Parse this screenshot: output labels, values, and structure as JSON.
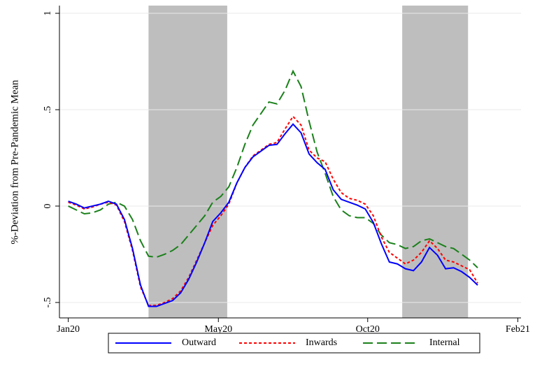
{
  "chart_data": {
    "type": "line",
    "ylabel": "%-Deviation from Pre-Pandemic Mean",
    "x": [
      0,
      1,
      2,
      3,
      4,
      5,
      6,
      7,
      8,
      9,
      10,
      11,
      12,
      13,
      14,
      15,
      16,
      17,
      18,
      19,
      20,
      21,
      22,
      23,
      24,
      25,
      26,
      27,
      28,
      29,
      30,
      31,
      32,
      33,
      34,
      35,
      36,
      37,
      38,
      39,
      40,
      41,
      42,
      43,
      44,
      45,
      46,
      47,
      48,
      49,
      50,
      51
    ],
    "series": [
      {
        "name": "Outward",
        "color": "#0000ff",
        "dash": "solid",
        "values": [
          0.025,
          0.01,
          -0.01,
          0,
          0.01,
          0.025,
          0.01,
          -0.07,
          -0.22,
          -0.41,
          -0.52,
          -0.52,
          -0.505,
          -0.49,
          -0.45,
          -0.38,
          -0.29,
          -0.19,
          -0.08,
          -0.035,
          0.02,
          0.12,
          0.2,
          0.255,
          0.285,
          0.315,
          0.32,
          0.375,
          0.425,
          0.38,
          0.27,
          0.225,
          0.19,
          0.085,
          0.035,
          0.02,
          0.005,
          -0.015,
          -0.085,
          -0.195,
          -0.29,
          -0.3,
          -0.325,
          -0.335,
          -0.29,
          -0.215,
          -0.255,
          -0.325,
          -0.32,
          -0.34,
          -0.37,
          -0.41
        ]
      },
      {
        "name": "Inwards",
        "color": "#ff0000",
        "dash": "dotted",
        "values": [
          0.02,
          0.005,
          -0.015,
          -0.005,
          0.01,
          0.02,
          0.005,
          -0.08,
          -0.23,
          -0.42,
          -0.515,
          -0.515,
          -0.5,
          -0.48,
          -0.44,
          -0.37,
          -0.28,
          -0.19,
          -0.1,
          -0.05,
          0.01,
          0.12,
          0.2,
          0.26,
          0.29,
          0.32,
          0.33,
          0.4,
          0.465,
          0.42,
          0.29,
          0.25,
          0.23,
          0.14,
          0.07,
          0.04,
          0.03,
          0.01,
          -0.05,
          -0.16,
          -0.24,
          -0.27,
          -0.3,
          -0.28,
          -0.24,
          -0.18,
          -0.22,
          -0.28,
          -0.29,
          -0.31,
          -0.33,
          -0.4
        ]
      },
      {
        "name": "Internal",
        "color": "#1a801a",
        "dash": "dashed",
        "values": [
          0,
          -0.02,
          -0.04,
          -0.035,
          -0.02,
          0.01,
          0.02,
          0,
          -0.07,
          -0.18,
          -0.26,
          -0.265,
          -0.25,
          -0.23,
          -0.2,
          -0.15,
          -0.1,
          -0.05,
          0.02,
          0.05,
          0.1,
          0.2,
          0.32,
          0.42,
          0.48,
          0.54,
          0.53,
          0.6,
          0.7,
          0.62,
          0.44,
          0.28,
          0.17,
          0.05,
          -0.02,
          -0.05,
          -0.06,
          -0.06,
          -0.09,
          -0.15,
          -0.19,
          -0.2,
          -0.22,
          -0.21,
          -0.18,
          -0.17,
          -0.19,
          -0.21,
          -0.22,
          -0.25,
          -0.28,
          -0.32
        ]
      }
    ],
    "shaded": [
      [
        10,
        19.8
      ],
      [
        41.6,
        49.8
      ]
    ],
    "xlim": [
      -1.1,
      56.4
    ],
    "xticks": [
      {
        "value": 0,
        "label": "Jan20"
      },
      {
        "value": 18.7,
        "label": "May20"
      },
      {
        "value": 37.3,
        "label": "Oct20"
      },
      {
        "value": 56,
        "label": "Feb21"
      }
    ],
    "ylim": [
      -0.58,
      1.04
    ],
    "yticks": [
      {
        "value": -0.5,
        "label": "-.5"
      },
      0,
      {
        "value": 0.5,
        "label": ".5"
      },
      1
    ],
    "grid": true,
    "legend": "bottom"
  }
}
